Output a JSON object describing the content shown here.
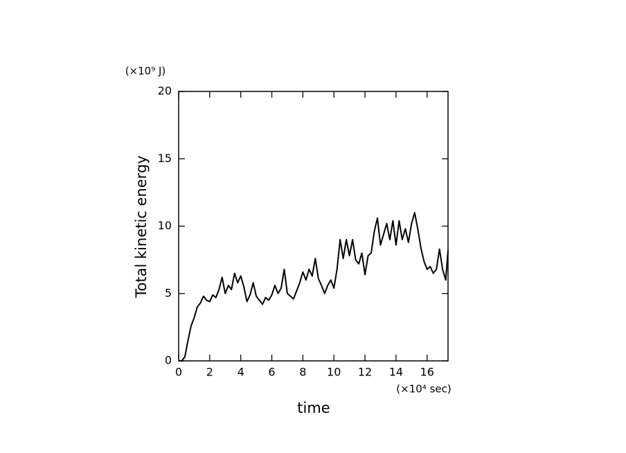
{
  "chart_data": {
    "type": "line",
    "x_label": "time",
    "y_label": "Total kinetic energy",
    "x_unit": "(×10⁴ sec)",
    "y_unit": "(×10⁹ J)",
    "color": "#000000",
    "xlim": [
      0,
      17.35
    ],
    "ylim": [
      0,
      20
    ],
    "xticks": [
      0,
      2,
      4,
      6,
      8,
      10,
      12,
      14,
      16
    ],
    "yticks": [
      0,
      5,
      10,
      15,
      20
    ],
    "grid": false,
    "x": [
      0,
      0.2,
      0.4,
      0.6,
      0.8,
      1.0,
      1.2,
      1.4,
      1.6,
      1.8,
      2.0,
      2.2,
      2.4,
      2.6,
      2.8,
      3.0,
      3.2,
      3.4,
      3.6,
      3.8,
      4.0,
      4.2,
      4.4,
      4.6,
      4.8,
      5.0,
      5.2,
      5.4,
      5.6,
      5.8,
      6.0,
      6.2,
      6.4,
      6.6,
      6.8,
      7.0,
      7.2,
      7.4,
      7.6,
      7.8,
      8.0,
      8.2,
      8.4,
      8.6,
      8.8,
      9.0,
      9.2,
      9.4,
      9.6,
      9.8,
      10.0,
      10.2,
      10.4,
      10.6,
      10.8,
      11.0,
      11.2,
      11.4,
      11.6,
      11.8,
      12.0,
      12.2,
      12.4,
      12.6,
      12.8,
      13.0,
      13.2,
      13.4,
      13.6,
      13.8,
      14.0,
      14.2,
      14.4,
      14.6,
      14.8,
      15.0,
      15.2,
      15.4,
      15.6,
      15.8,
      16.0,
      16.2,
      16.4,
      16.6,
      16.8,
      17.0,
      17.2,
      17.35
    ],
    "values": [
      0,
      0,
      0.3,
      1.5,
      2.6,
      3.2,
      4.0,
      4.3,
      4.8,
      4.5,
      4.4,
      4.9,
      4.7,
      5.3,
      6.2,
      5.0,
      5.6,
      5.3,
      6.5,
      5.8,
      6.3,
      5.5,
      4.4,
      4.9,
      5.8,
      4.8,
      4.5,
      4.2,
      4.7,
      4.5,
      4.9,
      5.6,
      5.0,
      5.4,
      6.8,
      5.0,
      4.8,
      4.6,
      5.2,
      5.8,
      6.6,
      6.0,
      6.8,
      6.3,
      7.6,
      6.1,
      5.6,
      5.0,
      5.6,
      6.0,
      5.4,
      6.8,
      9.0,
      7.6,
      9.0,
      7.8,
      9.0,
      7.5,
      7.2,
      8.0,
      6.4,
      7.8,
      8.0,
      9.6,
      10.6,
      8.6,
      9.4,
      10.2,
      9.0,
      10.4,
      8.6,
      10.4,
      9.0,
      9.8,
      8.8,
      10.2,
      11.0,
      9.8,
      8.4,
      7.4,
      6.8,
      7.0,
      6.5,
      6.8,
      8.3,
      6.8,
      6.0,
      8.2
    ]
  }
}
